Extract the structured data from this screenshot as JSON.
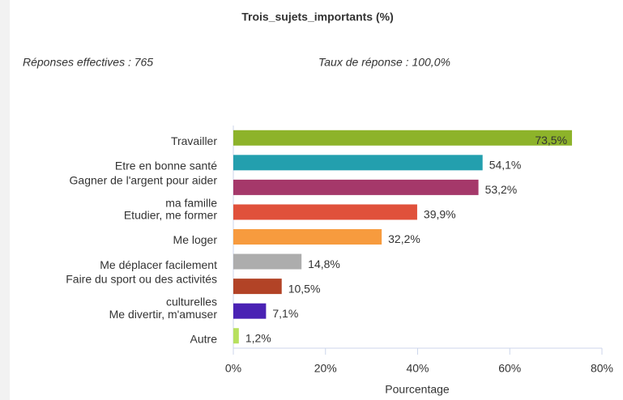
{
  "chart_data": {
    "type": "bar",
    "orientation": "horizontal",
    "title": "Trois_sujets_importants (%)",
    "annotations": [
      "Réponses effectives : 765",
      "Taux de réponse : 100,0%"
    ],
    "categories": [
      "Travailler",
      "Etre en bonne santé",
      "Gagner de l'argent pour aider ma famille",
      "Etudier, me former",
      "Me loger",
      "Me déplacer facilement",
      "Faire du sport ou des activités culturelles",
      "Me divertir, m'amuser",
      "Autre"
    ],
    "values": [
      73.5,
      54.1,
      53.2,
      39.9,
      32.2,
      14.8,
      10.5,
      7.1,
      1.2
    ],
    "value_labels": [
      "73,5%",
      "54,1%",
      "53,2%",
      "39,9%",
      "32,2%",
      "14,8%",
      "10,5%",
      "7,1%",
      "1,2%"
    ],
    "colors": [
      "#8db32a",
      "#239fae",
      "#a5386a",
      "#e0513b",
      "#f79b3e",
      "#adadad",
      "#b24326",
      "#4a22b4",
      "#b7e05e"
    ],
    "xlabel": "Pourcentage",
    "xlim": [
      0,
      80
    ],
    "xticks": [
      {
        "value": 0,
        "label": "0%"
      },
      {
        "value": 20,
        "label": "20%"
      },
      {
        "value": 40,
        "label": "40%"
      },
      {
        "value": 60,
        "label": "60%"
      },
      {
        "value": 80,
        "label": "80%"
      }
    ],
    "grid": false
  }
}
